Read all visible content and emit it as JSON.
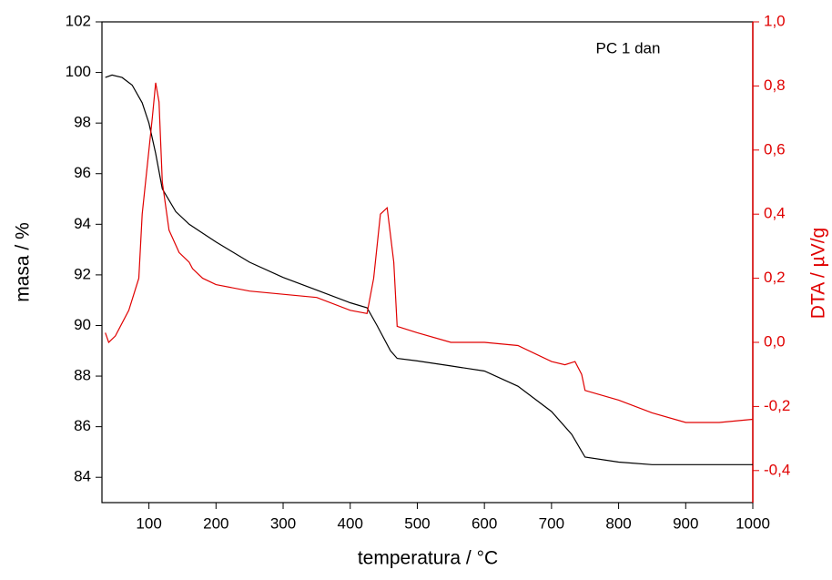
{
  "chart_data": {
    "type": "line",
    "annotation": "PC 1 dan",
    "x_label": "temperatura / °C",
    "y_label": "masa / %",
    "y2_label": "DTA / µV/g",
    "xlim": [
      30,
      1000
    ],
    "xticks": [
      100,
      200,
      300,
      400,
      500,
      600,
      700,
      800,
      900,
      1000
    ],
    "ylim": [
      83,
      102
    ],
    "yticks": [
      84,
      86,
      88,
      90,
      92,
      94,
      96,
      98,
      100,
      102
    ],
    "y2lim": [
      -0.5,
      1.0
    ],
    "y2ticks": [
      {
        "value": -0.4,
        "label": "-0,4"
      },
      {
        "value": -0.2,
        "label": "-0,2"
      },
      {
        "value": 0.0,
        "label": "0,0"
      },
      {
        "value": 0.2,
        "label": "0,2"
      },
      {
        "value": 0.4,
        "label": "0,4"
      },
      {
        "value": 0.6,
        "label": "0,6"
      },
      {
        "value": 0.8,
        "label": "0,8"
      },
      {
        "value": 1.0,
        "label": "1,0"
      }
    ],
    "y2color": "#e00000",
    "series": [
      {
        "color": "#000000",
        "x": [
          35,
          45,
          60,
          75,
          90,
          100,
          110,
          120,
          140,
          160,
          200,
          250,
          300,
          350,
          400,
          425,
          440,
          460,
          470,
          500,
          550,
          600,
          650,
          700,
          730,
          750,
          800,
          850,
          900,
          950,
          1000
        ],
        "values": [
          99.8,
          99.9,
          99.8,
          99.5,
          98.8,
          98.0,
          96.8,
          95.4,
          94.5,
          94.0,
          93.3,
          92.5,
          91.9,
          91.4,
          90.9,
          90.7,
          90.0,
          89.0,
          88.7,
          88.6,
          88.4,
          88.2,
          87.6,
          86.6,
          85.7,
          84.8,
          84.6,
          84.5,
          84.5,
          84.5,
          84.5
        ]
      },
      {
        "color": "#e00000",
        "axis": "y2",
        "x": [
          35,
          40,
          50,
          70,
          85,
          90,
          100,
          105,
          110,
          115,
          120,
          130,
          145,
          160,
          165,
          180,
          200,
          250,
          300,
          350,
          400,
          425,
          435,
          445,
          455,
          465,
          470,
          500,
          550,
          600,
          650,
          700,
          720,
          735,
          745,
          750,
          800,
          850,
          900,
          950,
          1000
        ],
        "values": [
          0.03,
          0.0,
          0.02,
          0.1,
          0.2,
          0.4,
          0.6,
          0.7,
          0.81,
          0.75,
          0.5,
          0.35,
          0.28,
          0.25,
          0.23,
          0.2,
          0.18,
          0.16,
          0.15,
          0.14,
          0.1,
          0.09,
          0.2,
          0.4,
          0.42,
          0.25,
          0.05,
          0.03,
          0.0,
          0.0,
          -0.01,
          -0.06,
          -0.07,
          -0.06,
          -0.1,
          -0.15,
          -0.18,
          -0.22,
          -0.25,
          -0.25,
          -0.24
        ]
      }
    ]
  }
}
